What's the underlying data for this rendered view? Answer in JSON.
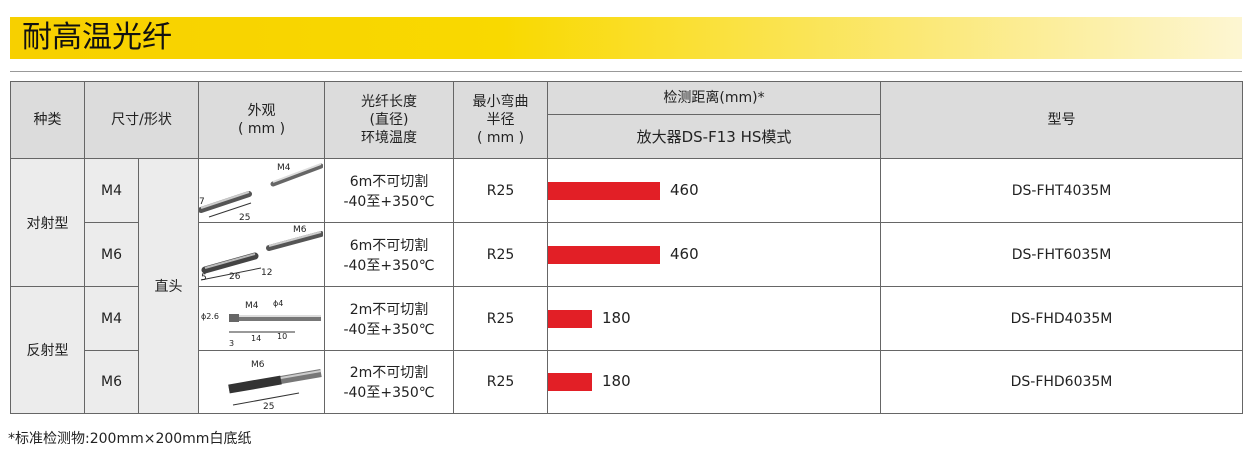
{
  "title": "耐高温光纤",
  "header": {
    "kind": "种类",
    "size_shape": "尺寸/形状",
    "appearance": [
      "外观",
      "( mm )"
    ],
    "fiber": [
      "光纤长度",
      "(直径)",
      "环境温度"
    ],
    "bend": [
      "最小弯曲",
      "半径",
      "( mm )"
    ],
    "distance": "检测距离(mm)*",
    "amp": "放大器DS-F13  HS模式",
    "model": "型号"
  },
  "groups": [
    {
      "name": "对射型"
    },
    {
      "name": "反射型"
    }
  ],
  "shape": "直头",
  "bar_color": "#e21f26",
  "distance_max": 460,
  "rows": [
    {
      "size": "M4",
      "fiber_line1": "6m不可切割",
      "fiber_line2": "-40至+350℃",
      "radius": "R25",
      "distance": 460,
      "distance_label": "460",
      "model": "DS-FHT4035M",
      "dims": {
        "a": "M4",
        "b": "7",
        "c": "25"
      }
    },
    {
      "size": "M6",
      "fiber_line1": "6m不可切割",
      "fiber_line2": "-40至+350℃",
      "radius": "R25",
      "distance": 460,
      "distance_label": "460",
      "model": "DS-FHT6035M",
      "dims": {
        "a": "M6",
        "b": "5",
        "c": "26",
        "d": "12"
      }
    },
    {
      "size": "M4",
      "fiber_line1": "2m不可切割",
      "fiber_line2": "-40至+350℃",
      "radius": "R25",
      "distance": 180,
      "distance_label": "180",
      "model": "DS-FHD4035M",
      "dims": {
        "a": "M4",
        "b": "ϕ4",
        "c": "ϕ2.6",
        "d": "3",
        "e": "14",
        "f": "10"
      }
    },
    {
      "size": "M6",
      "fiber_line1": "2m不可切割",
      "fiber_line2": "-40至+350℃",
      "radius": "R25",
      "distance": 180,
      "distance_label": "180",
      "model": "DS-FHD6035M",
      "dims": {
        "a": "M6",
        "b": "25"
      }
    }
  ],
  "footnote": "*标准检测物:200mm×200mm白底纸"
}
